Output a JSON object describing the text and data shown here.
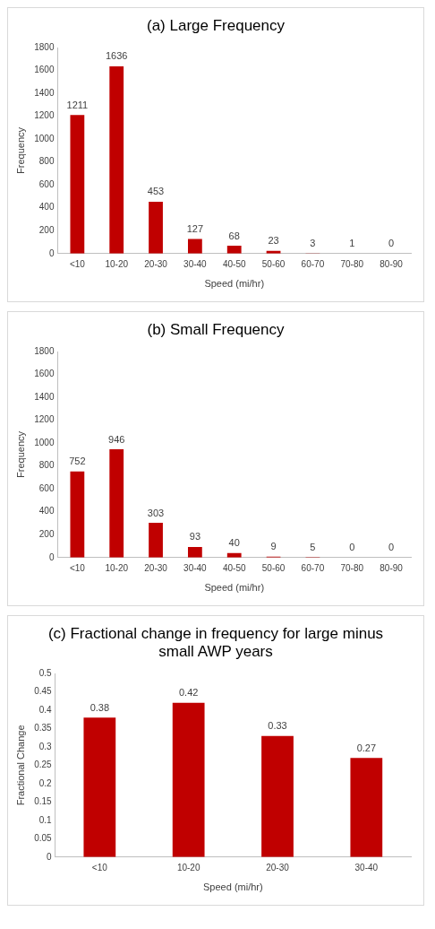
{
  "chart_data": [
    {
      "type": "bar",
      "title": "(a) Large Frequency",
      "xlabel": "Speed (mi/hr)",
      "ylabel": "Frequency",
      "categories": [
        "<10",
        "10-20",
        "20-30",
        "30-40",
        "40-50",
        "50-60",
        "60-70",
        "70-80",
        "80-90"
      ],
      "values": [
        1211,
        1636,
        453,
        127,
        68,
        23,
        3,
        1,
        0
      ],
      "color": "#c00000",
      "ylim": [
        0,
        1800
      ],
      "yticks": [
        0,
        200,
        400,
        600,
        800,
        1000,
        1200,
        1400,
        1600,
        1800
      ],
      "grid": false,
      "data_labels": true
    },
    {
      "type": "bar",
      "title": "(b) Small Frequency",
      "xlabel": "Speed (mi/hr)",
      "ylabel": "Frequency",
      "categories": [
        "<10",
        "10-20",
        "20-30",
        "30-40",
        "40-50",
        "50-60",
        "60-70",
        "70-80",
        "80-90"
      ],
      "values": [
        752,
        946,
        303,
        93,
        40,
        9,
        5,
        0,
        0
      ],
      "color": "#c00000",
      "ylim": [
        0,
        1800
      ],
      "yticks": [
        0,
        200,
        400,
        600,
        800,
        1000,
        1200,
        1400,
        1600,
        1800
      ],
      "grid": false,
      "data_labels": true
    },
    {
      "type": "bar",
      "title": "(c) Fractional change in frequency for large minus small AWP years",
      "xlabel": "Speed (mi/hr)",
      "ylabel": "Fractional Change",
      "categories": [
        "<10",
        "10-20",
        "20-30",
        "30-40"
      ],
      "values": [
        0.38,
        0.42,
        0.33,
        0.27
      ],
      "color": "#c00000",
      "ylim": [
        0,
        0.5
      ],
      "yticks": [
        0,
        0.05,
        0.1,
        0.15,
        0.2,
        0.25,
        0.3,
        0.35,
        0.4,
        0.45,
        0.5
      ],
      "grid": false,
      "data_labels": true
    }
  ]
}
